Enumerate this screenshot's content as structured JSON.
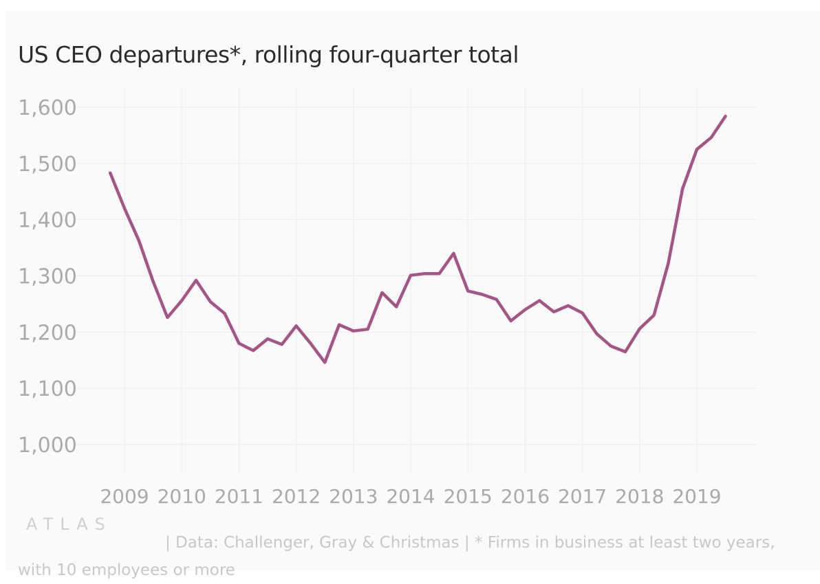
{
  "chart_data": {
    "type": "line",
    "title": "US CEO departures*, rolling four-quarter total",
    "xlabel": "",
    "ylabel": "",
    "x_ticks": [
      "2009",
      "2010",
      "2011",
      "2012",
      "2013",
      "2014",
      "2015",
      "2016",
      "2017",
      "2018",
      "2019"
    ],
    "y_ticks": [
      "1,000",
      "1,100",
      "1,200",
      "1,300",
      "1,400",
      "1,500",
      "1,600"
    ],
    "ylim": [
      1000,
      1600
    ],
    "grid": true,
    "legend": "none",
    "series": [
      {
        "color": "#a55486",
        "x": [
          "2008-Q4",
          "2009-Q1",
          "2009-Q2",
          "2009-Q3",
          "2009-Q4",
          "2010-Q1",
          "2010-Q2",
          "2010-Q3",
          "2010-Q4",
          "2011-Q1",
          "2011-Q2",
          "2011-Q3",
          "2011-Q4",
          "2012-Q1",
          "2012-Q2",
          "2012-Q3",
          "2012-Q4",
          "2013-Q1",
          "2013-Q2",
          "2013-Q3",
          "2013-Q4",
          "2014-Q1",
          "2014-Q2",
          "2014-Q3",
          "2014-Q4",
          "2015-Q1",
          "2015-Q2",
          "2015-Q3",
          "2015-Q4",
          "2016-Q1",
          "2016-Q2",
          "2016-Q3",
          "2016-Q4",
          "2017-Q1",
          "2017-Q2",
          "2017-Q3",
          "2017-Q4",
          "2018-Q1",
          "2018-Q2",
          "2018-Q3",
          "2018-Q4",
          "2019-Q1",
          "2019-Q2",
          "2019-Q3"
        ],
        "values": [
          1483,
          1420,
          1363,
          1290,
          1226,
          1256,
          1292,
          1254,
          1233,
          1180,
          1167,
          1188,
          1178,
          1211,
          1180,
          1146,
          1213,
          1202,
          1205,
          1270,
          1245,
          1301,
          1304,
          1304,
          1340,
          1273,
          1267,
          1258,
          1220,
          1240,
          1256,
          1236,
          1247,
          1234,
          1197,
          1175,
          1165,
          1206,
          1230,
          1322,
          1455,
          1525,
          1546,
          1584
        ]
      }
    ]
  },
  "footer": {
    "logo": "ATLAS",
    "source": "| Data: Challenger, Gray & Christmas | * Firms in business at least two years, with 10 employees or more"
  }
}
